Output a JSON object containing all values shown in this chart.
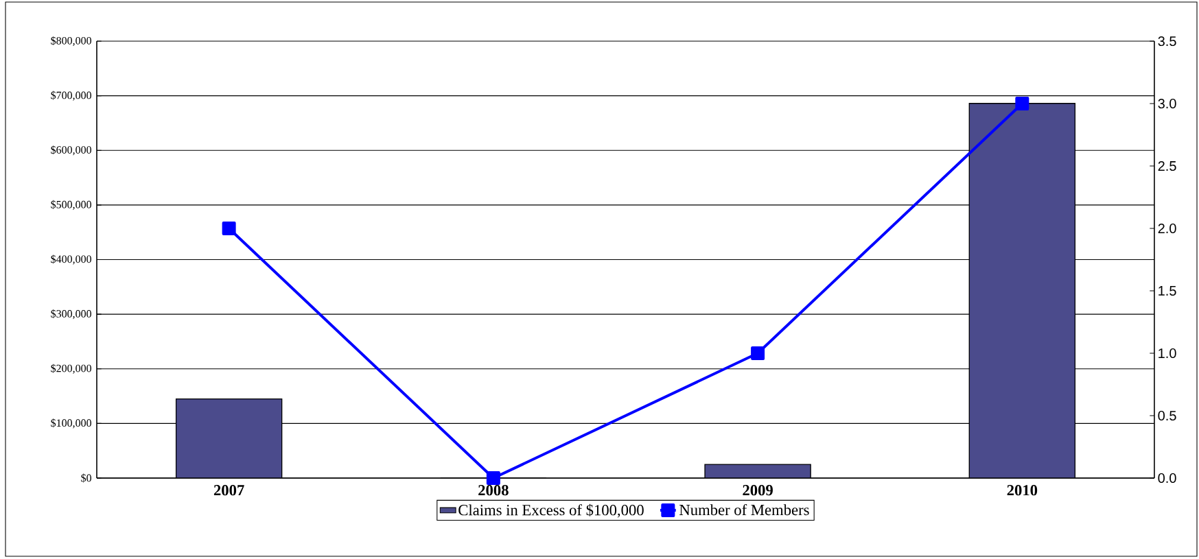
{
  "chart_data": {
    "type": "bar",
    "categories": [
      "2007",
      "2008",
      "2009",
      "2010"
    ],
    "series": [
      {
        "name": "Claims in Excess of $100,000",
        "color": "#4b4b8c",
        "values": [
          145000,
          0,
          25000,
          686000
        ]
      },
      {
        "name": "Number of Members",
        "type": "line",
        "axis": "y2",
        "color": "#0000ff",
        "values": [
          2,
          0,
          1,
          3
        ],
        "marker": "square",
        "line_style": "solid"
      }
    ],
    "ylim": [
      0,
      800000
    ],
    "yticks": [
      {
        "value": 0,
        "label": "$0"
      },
      {
        "value": 100000,
        "label": "$100,000"
      },
      {
        "value": 200000,
        "label": "$200,000"
      },
      {
        "value": 300000,
        "label": "$300,000"
      },
      {
        "value": 400000,
        "label": "$400,000"
      },
      {
        "value": 500000,
        "label": "$500,000"
      },
      {
        "value": 600000,
        "label": "$600,000"
      },
      {
        "value": 700000,
        "label": "$700,000"
      },
      {
        "value": 800000,
        "label": "$800,000"
      }
    ],
    "y2lim": [
      0,
      3.5
    ],
    "y2ticks": [
      {
        "value": 0,
        "label": "0.0"
      },
      {
        "value": 0.5,
        "label": "0.5"
      },
      {
        "value": 1,
        "label": "1.0"
      },
      {
        "value": 1.5,
        "label": "1.5"
      },
      {
        "value": 2,
        "label": "2.0"
      },
      {
        "value": 2.5,
        "label": "2.5"
      },
      {
        "value": 3,
        "label": "3.0"
      },
      {
        "value": 3.5,
        "label": "3.5"
      }
    ],
    "grid": "y",
    "legend": "bottom"
  }
}
